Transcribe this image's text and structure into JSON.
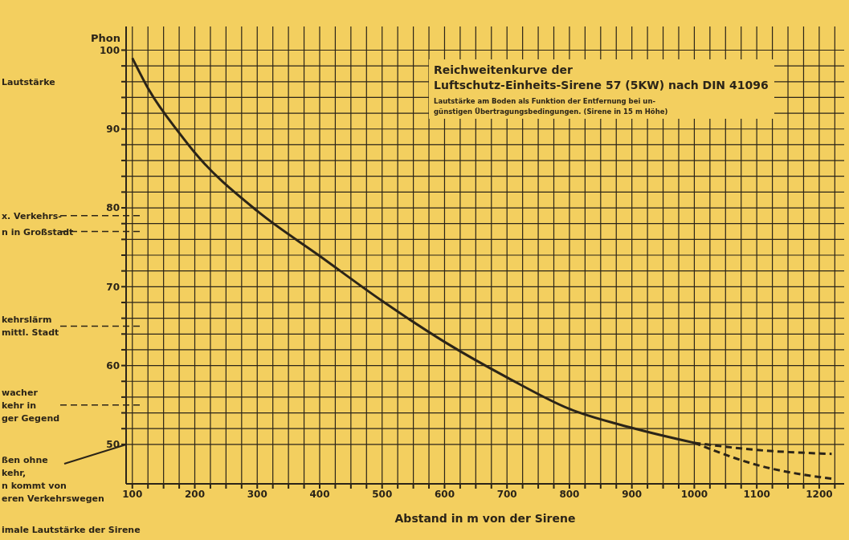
{
  "chart_data": {
    "type": "line",
    "title": "Reichweitenkurve der\nLuftschutz-Einheits-Sirene 57 (5KW) nach DIN 41096",
    "subtitle": "Lautstärke am Boden als Funktion der Entfernung bei un-\ngünstigen Übertragungsbedingungen. (Sirene in 15 m Höhe)",
    "xlabel": "Abstand in m von der Sirene",
    "ylabel": "Phon",
    "series": [
      {
        "color": "#2b2418",
        "line_style": "solid",
        "x": [
          100,
          127,
          177,
          200,
          300,
          400,
          500,
          600,
          700,
          800,
          900,
          1000
        ],
        "values": [
          99,
          94.9,
          89.3,
          87,
          79.6,
          73.9,
          68.2,
          63,
          58.5,
          54.5,
          52.1,
          50.2
        ]
      },
      {
        "color": "#2b2418",
        "line_style": "dashed",
        "x": [
          1000,
          1100,
          1220
        ],
        "values": [
          50.2,
          49.3,
          48.8
        ]
      },
      {
        "color": "#2b2418",
        "line_style": "dashed",
        "x": [
          1000,
          1100,
          1225
        ],
        "values": [
          50.2,
          47.4,
          45.6
        ]
      }
    ],
    "xlim": [
      90,
      1240
    ],
    "xticks": [
      100,
      {
        "value": 125,
        "label": null
      },
      {
        "value": 150,
        "label": null
      },
      {
        "value": 175,
        "label": null
      },
      200,
      {
        "value": 225,
        "label": null
      },
      {
        "value": 250,
        "label": null
      },
      {
        "value": 275,
        "label": null
      },
      300,
      {
        "value": 325,
        "label": null
      },
      {
        "value": 350,
        "label": null
      },
      {
        "value": 375,
        "label": null
      },
      400,
      {
        "value": 425,
        "label": null
      },
      {
        "value": 450,
        "label": null
      },
      {
        "value": 475,
        "label": null
      },
      500,
      {
        "value": 525,
        "label": null
      },
      {
        "value": 550,
        "label": null
      },
      {
        "value": 575,
        "label": null
      },
      600,
      {
        "value": 625,
        "label": null
      },
      {
        "value": 650,
        "label": null
      },
      {
        "value": 675,
        "label": null
      },
      700,
      {
        "value": 725,
        "label": null
      },
      {
        "value": 750,
        "label": null
      },
      {
        "value": 775,
        "label": null
      },
      800,
      {
        "value": 825,
        "label": null
      },
      {
        "value": 850,
        "label": null
      },
      {
        "value": 875,
        "label": null
      },
      900,
      {
        "value": 925,
        "label": null
      },
      {
        "value": 950,
        "label": null
      },
      {
        "value": 975,
        "label": null
      },
      1000,
      {
        "value": 1025,
        "label": null
      },
      {
        "value": 1050,
        "label": null
      },
      {
        "value": 1075,
        "label": null
      },
      1100,
      {
        "value": 1125,
        "label": null
      },
      {
        "value": 1150,
        "label": null
      },
      {
        "value": 1175,
        "label": null
      },
      1200,
      {
        "value": 1225,
        "label": null
      }
    ],
    "ylim": [
      45,
      103
    ],
    "yticks": [
      50,
      {
        "value": 52,
        "label": null
      },
      {
        "value": 54,
        "label": null
      },
      {
        "value": 56,
        "label": null
      },
      {
        "value": 58,
        "label": null
      },
      60,
      {
        "value": 62,
        "label": null
      },
      {
        "value": 64,
        "label": null
      },
      {
        "value": 66,
        "label": null
      },
      {
        "value": 68,
        "label": null
      },
      70,
      {
        "value": 72,
        "label": null
      },
      {
        "value": 74,
        "label": null
      },
      {
        "value": 76,
        "label": null
      },
      {
        "value": 78,
        "label": null
      },
      80,
      {
        "value": 82,
        "label": null
      },
      {
        "value": 84,
        "label": null
      },
      {
        "value": 86,
        "label": null
      },
      {
        "value": 88,
        "label": null
      },
      90,
      {
        "value": 92,
        "label": null
      },
      {
        "value": 94,
        "label": null
      },
      {
        "value": 96,
        "label": null
      },
      {
        "value": 98,
        "label": null
      },
      100
    ],
    "grid": true,
    "marker": "none",
    "ref_lines": [
      {
        "axis": "y",
        "value": 79,
        "label": "x. Verkehrs-",
        "line_style": "dashed",
        "color": "#2b2418"
      },
      {
        "axis": "y",
        "value": 77,
        "label": "n in Großstadt",
        "line_style": "dashed",
        "color": "#2b2418"
      },
      {
        "axis": "y",
        "value": 65,
        "label": "kehrslärm\nmittl. Stadt",
        "line_style": "dashed",
        "color": "#2b2418"
      },
      {
        "axis": "y",
        "value": 55,
        "label": "wacher\nkehr in\nger Gegend",
        "line_style": "dashed",
        "color": "#2b2418"
      }
    ],
    "annotations": [
      "Lautstärke",
      "imale Lautstärke der Sirene",
      "ßen ohne\nkehr,\nn kommt von\neren Verkehrswegen"
    ]
  }
}
